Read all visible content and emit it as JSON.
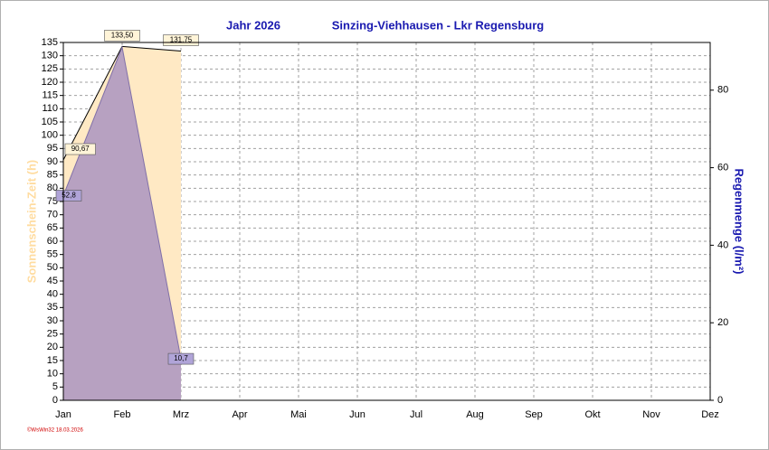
{
  "chart_data": {
    "type": "area",
    "title": "Jahr  2026",
    "subtitle": "Sinzing-Viehhausen - Lkr Regensburg",
    "categories": [
      "Jan",
      "Feb",
      "Mrz",
      "Apr",
      "Mai",
      "Jun",
      "Jul",
      "Aug",
      "Sep",
      "Okt",
      "Nov",
      "Dez"
    ],
    "y_label": "Sonnenschein-Zeit  (h)",
    "y2_label": "Regenmenge  (l/m²)",
    "ylim": [
      0,
      135
    ],
    "yticks": [
      0,
      5,
      10,
      15,
      20,
      25,
      30,
      35,
      40,
      45,
      50,
      55,
      60,
      65,
      70,
      75,
      80,
      85,
      90,
      95,
      100,
      105,
      110,
      115,
      120,
      125,
      130,
      135
    ],
    "y2lim": [
      0,
      92.3
    ],
    "y2ticks": [
      0,
      20,
      40,
      60,
      80
    ],
    "grid": true,
    "series": [
      {
        "color": "#ffe9c4",
        "values": [
          90.67,
          133.5,
          131.75,
          null,
          null,
          null,
          null,
          null,
          null,
          null,
          null,
          null
        ],
        "value_labels": [
          "90,67",
          "133,50",
          "131,75",
          null,
          null,
          null,
          null,
          null,
          null,
          null,
          null,
          null
        ]
      },
      {
        "axis": "y2",
        "color": "#9f88c0",
        "values": [
          52.8,
          91.1,
          10.7,
          null,
          null,
          null,
          null,
          null,
          null,
          null,
          null,
          null
        ],
        "value_labels": [
          "52,8",
          null,
          "10,7",
          null,
          null,
          null,
          null,
          null,
          null,
          null,
          null,
          null
        ]
      }
    ],
    "footer": "©WsWin32  18.03.2026"
  }
}
